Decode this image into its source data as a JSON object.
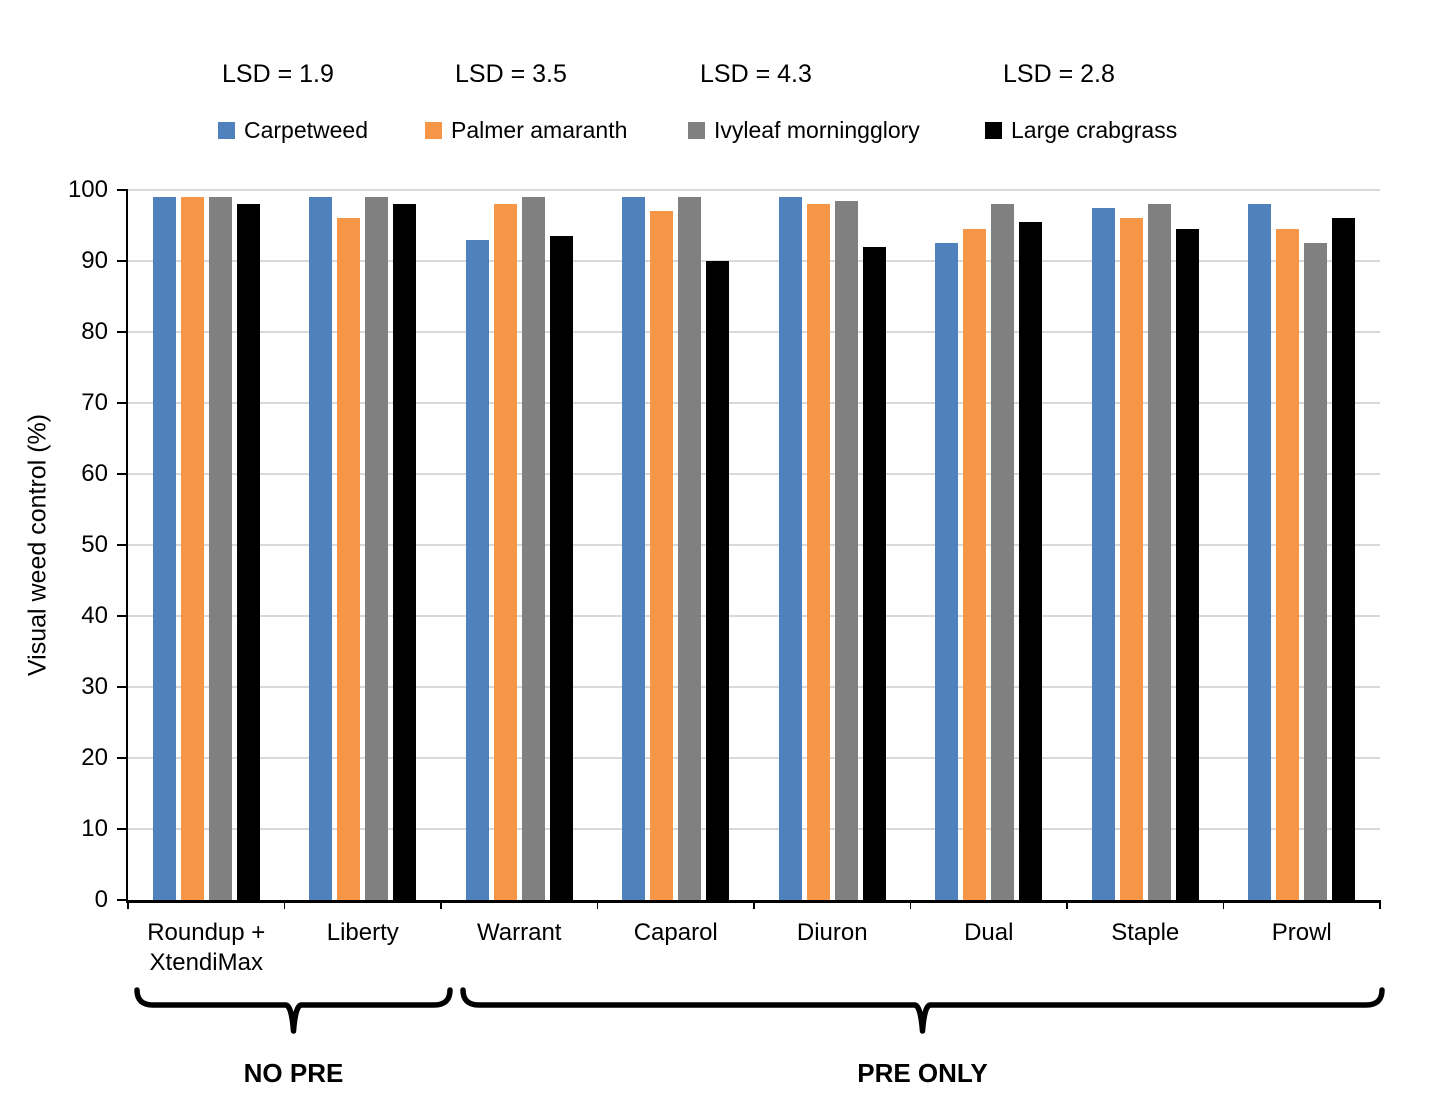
{
  "chart_data": {
    "type": "bar",
    "title": "",
    "ylabel": "Visual weed control (%)",
    "xlabel": "",
    "ylim": [
      0,
      100
    ],
    "ytick_step": 10,
    "grid": "horizontal",
    "gridline_color": "#D9D9D9",
    "axis_color": "#000000",
    "legend_position": "top",
    "categories": [
      "Roundup + XtendiMax",
      "Liberty",
      "Warrant",
      "Caparol",
      "Diuron",
      "Dual",
      "Staple",
      "Prowl"
    ],
    "series": [
      {
        "name": "Carpetweed",
        "color": "#4F81BD",
        "values": [
          99,
          99,
          93,
          99,
          99,
          92.5,
          97.5,
          98
        ]
      },
      {
        "name": "Palmer amaranth",
        "color": "#F79646",
        "values": [
          99,
          96,
          98,
          97,
          98,
          94.5,
          96,
          94.5
        ]
      },
      {
        "name": "Ivyleaf morningglory",
        "color": "#808080",
        "values": [
          99,
          99,
          99,
          99,
          98.5,
          98,
          98,
          92.5
        ]
      },
      {
        "name": "Large crabgrass",
        "color": "#000000",
        "values": [
          98,
          98,
          93.5,
          90,
          92,
          95.5,
          94.5,
          96
        ]
      }
    ],
    "lsd_labels": [
      "LSD = 1.9",
      "LSD = 3.5",
      "LSD = 4.3",
      "LSD = 2.8"
    ],
    "group_brackets": [
      {
        "label": "NO PRE",
        "start_index": 0,
        "end_index": 1
      },
      {
        "label": "PRE ONLY",
        "start_index": 2,
        "end_index": 7
      }
    ]
  }
}
